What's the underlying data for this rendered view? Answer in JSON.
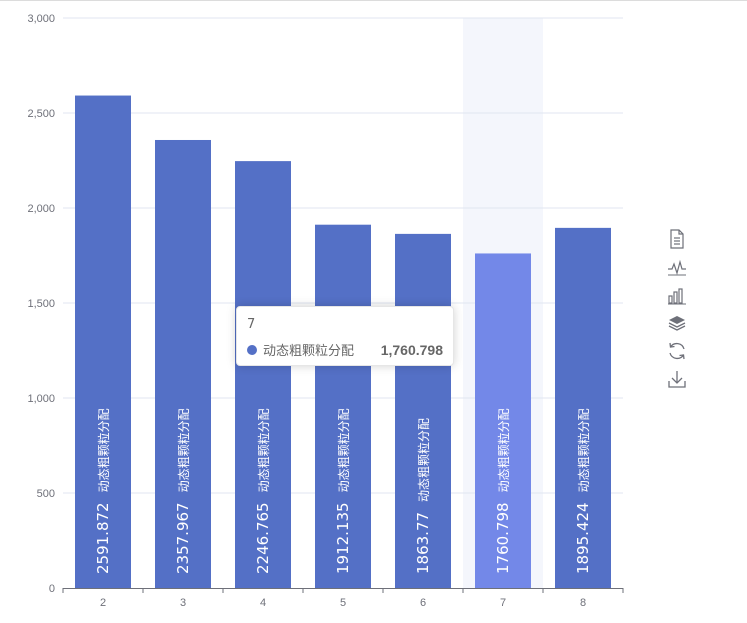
{
  "chart_data": {
    "type": "bar",
    "categories": [
      "2",
      "3",
      "4",
      "5",
      "6",
      "7",
      "8"
    ],
    "series": [
      {
        "name": "动态粗颗粒分配",
        "values": [
          2591.872,
          2357.967,
          2246.765,
          1912.135,
          1863.77,
          1760.798,
          1895.424
        ]
      }
    ],
    "value_labels": [
      "2591.872",
      "2357.967",
      "2246.765",
      "1912.135",
      "1863.77",
      "1760.798",
      "1895.424"
    ],
    "ylim": [
      0,
      3000
    ],
    "yticks": [
      0,
      500,
      1000,
      1500,
      2000,
      2500,
      3000
    ],
    "ytick_labels": [
      "0",
      "500",
      "1,000",
      "1,500",
      "2,000",
      "2,500",
      "3,000"
    ],
    "grid": true,
    "highlighted_category": "7",
    "colors": {
      "bar": "#5470c6",
      "bar_hover": "#7388e8",
      "hover_band": "#f4f6fc",
      "grid": "#e0e6f1",
      "axis": "#6e7079"
    }
  },
  "tooltip": {
    "title": "7",
    "series_name": "动态粗颗粒分配",
    "value": "1,760.798",
    "marker_color": "#5470c6"
  },
  "toolbox": {
    "icons": [
      "data-view-icon",
      "line-chart-icon",
      "bar-chart-icon",
      "stack-icon",
      "restore-icon",
      "download-icon"
    ],
    "color": "#6e7079"
  }
}
